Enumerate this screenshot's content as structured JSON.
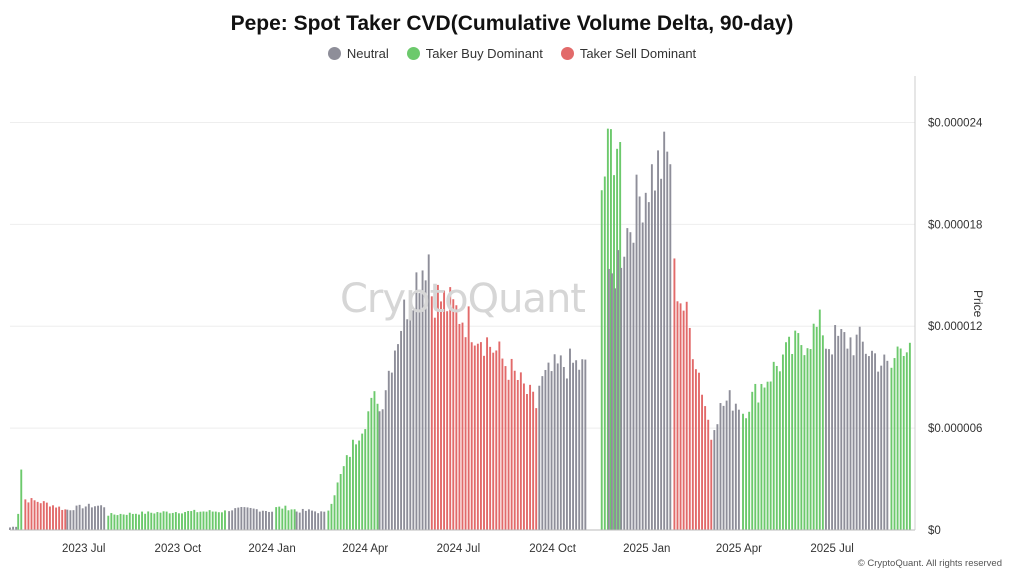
{
  "chart_data": {
    "type": "bar",
    "title": "Pepe: Spot Taker CVD(Cumulative Volume Delta, 90-day)",
    "ylabel": "Price",
    "ylim": [
      0,
      2.65e-05
    ],
    "y_ticks": [
      "$0",
      "$0.000006",
      "$0.000012",
      "$0.000018",
      "$0.000024"
    ],
    "y_tick_values": [
      0,
      6e-06,
      1.2e-05,
      1.8e-05,
      2.4e-05
    ],
    "x_ticks": [
      "2023 Jul",
      "2023 Oct",
      "2024 Jan",
      "2024 Apr",
      "2024 Jul",
      "2024 Oct",
      "2025 Jan",
      "2025 Apr",
      "2025 Jul"
    ],
    "x_tick_dates": [
      "2023-07-01",
      "2023-10-01",
      "2024-01-01",
      "2024-04-01",
      "2024-07-01",
      "2024-10-01",
      "2025-01-01",
      "2025-04-01",
      "2025-07-01"
    ],
    "x_range": [
      "2023-04-20",
      "2025-09-20"
    ],
    "legend": [
      {
        "name": "Neutral",
        "color": "#8e8e99"
      },
      {
        "name": "Taker Buy Dominant",
        "color": "#6cc96c"
      },
      {
        "name": "Taker Sell Dominant",
        "color": "#e26a6a"
      }
    ],
    "grid": true,
    "legend_position": "top-center",
    "series": [
      {
        "name": "Neutral",
        "segments": [
          {
            "start": "2023-04-20",
            "end": "2023-04-28",
            "from": 1.5e-07,
            "to": 2e-07
          },
          {
            "start": "2023-06-15",
            "end": "2023-07-25",
            "from": 1.2e-06,
            "to": 1.4e-06
          },
          {
            "start": "2023-11-20",
            "end": "2024-01-05",
            "from": 1.2e-06,
            "to": 1.1e-06
          },
          {
            "start": "2024-01-25",
            "end": "2024-02-25",
            "from": 1.1e-06,
            "to": 1e-06
          },
          {
            "start": "2024-04-15",
            "end": "2024-06-05",
            "from": 7e-06,
            "to": 1.63e-05
          },
          {
            "start": "2024-09-18",
            "end": "2024-11-05",
            "from": 8.5e-06,
            "to": 9.5e-06
          },
          {
            "start": "2024-11-25",
            "end": "2025-01-28",
            "from": 1.4e-05,
            "to": 2.2e-05
          },
          {
            "start": "2025-03-08",
            "end": "2025-04-05",
            "from": 6.5e-06,
            "to": 7.5e-06
          },
          {
            "start": "2025-06-25",
            "end": "2025-08-28",
            "from": 1.1e-05,
            "to": 9.5e-06
          }
        ]
      },
      {
        "name": "Taker Buy Dominant",
        "segments": [
          {
            "start": "2023-04-28",
            "end": "2023-05-05",
            "from": 1e-06,
            "to": 3.6e-06
          },
          {
            "start": "2023-07-25",
            "end": "2023-11-20",
            "from": 9e-07,
            "to": 1.1e-06
          },
          {
            "start": "2024-01-05",
            "end": "2024-01-25",
            "from": 1.3e-06,
            "to": 1.2e-06
          },
          {
            "start": "2024-02-25",
            "end": "2024-04-15",
            "from": 1.2e-06,
            "to": 8e-06
          },
          {
            "start": "2024-11-18",
            "end": "2024-12-10",
            "from": 2e-05,
            "to": 2.3e-05
          },
          {
            "start": "2025-04-05",
            "end": "2025-06-25",
            "from": 7e-06,
            "to": 1.2e-05
          },
          {
            "start": "2025-08-28",
            "end": "2025-09-18",
            "from": 9.5e-06,
            "to": 1.13e-05
          }
        ]
      },
      {
        "name": "Taker Sell Dominant",
        "segments": [
          {
            "start": "2023-05-05",
            "end": "2023-06-15",
            "from": 1.8e-06,
            "to": 1.2e-06
          },
          {
            "start": "2024-06-05",
            "end": "2024-09-18",
            "from": 1.4e-05,
            "to": 7.3e-06
          },
          {
            "start": "2025-01-28",
            "end": "2025-03-08",
            "from": 1.5e-05,
            "to": 5.5e-06
          }
        ]
      }
    ]
  },
  "watermark": "CryptoQuant",
  "credit": "© CryptoQuant. All rights reserved"
}
